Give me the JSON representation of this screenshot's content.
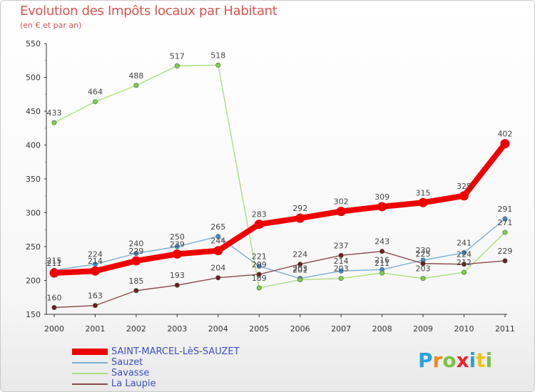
{
  "chart_data": {
    "type": "line",
    "title": "Evolution des Impôts locaux par Habitant",
    "subtitle": "(en € et par an)",
    "xlabel": "",
    "ylabel": "",
    "categories": [
      "2000",
      "2001",
      "2002",
      "2003",
      "2004",
      "2005",
      "2006",
      "2007",
      "2008",
      "2009",
      "2010",
      "2011"
    ],
    "ylim": [
      150,
      550
    ],
    "yticks": [
      150,
      200,
      250,
      300,
      350,
      400,
      450,
      500,
      550
    ],
    "ytick_labels": [
      "150",
      "200",
      "250",
      "300",
      "350",
      "400",
      "450",
      "500",
      "550"
    ],
    "grid": false,
    "legend_position": "bottom-left",
    "series": [
      {
        "name": "SAINT-MARCEL-LèS-SAUZET",
        "color": "#ee0000",
        "point_color": "#ee0000",
        "thick": true,
        "values": [
          211,
          214,
          229,
          239,
          244,
          283,
          292,
          302,
          309,
          315,
          325,
          402
        ],
        "labels": [
          "211",
          "214",
          "229",
          "239",
          "244",
          "283",
          "292",
          "302",
          "309",
          "315",
          "325",
          "402"
        ]
      },
      {
        "name": "Sauzet",
        "color": "#7aaed6",
        "point_color": "#3f8fd0",
        "thick": false,
        "values": [
          215,
          224,
          240,
          250,
          265,
          221,
          203,
          214,
          216,
          230,
          241,
          291
        ],
        "labels": [
          "215",
          "224",
          "240",
          "250",
          "265",
          "221",
          "203",
          "214",
          "216",
          "230",
          "241",
          "291"
        ]
      },
      {
        "name": "Savasse",
        "color": "#a9e07e",
        "point_color": "#7bd146",
        "thick": false,
        "values": [
          433,
          464,
          488,
          517,
          518,
          189,
          201,
          203,
          211,
          203,
          212,
          271
        ],
        "labels": [
          "433",
          "464",
          "488",
          "517",
          "518",
          "189",
          "201",
          "203",
          "211",
          "203",
          "212",
          "271"
        ]
      },
      {
        "name": "La Laupie",
        "color": "#8c4a4a",
        "point_color": "#6b1e1e",
        "thick": false,
        "values": [
          160,
          163,
          185,
          193,
          204,
          209,
          224,
          237,
          243,
          225,
          224,
          229
        ],
        "labels": [
          "160",
          "163",
          "185",
          "193",
          "204",
          "209",
          "224",
          "237",
          "243",
          "225",
          "224",
          "229"
        ]
      }
    ]
  },
  "brand": {
    "letters": [
      "P",
      "r",
      "o",
      "x",
      "i",
      "t",
      "i"
    ],
    "colors": [
      "#2aa3dd",
      "#f08a1c",
      "#7cc242",
      "#e8262f",
      "#2aa3dd",
      "#f0c419",
      "#7cc242"
    ]
  }
}
